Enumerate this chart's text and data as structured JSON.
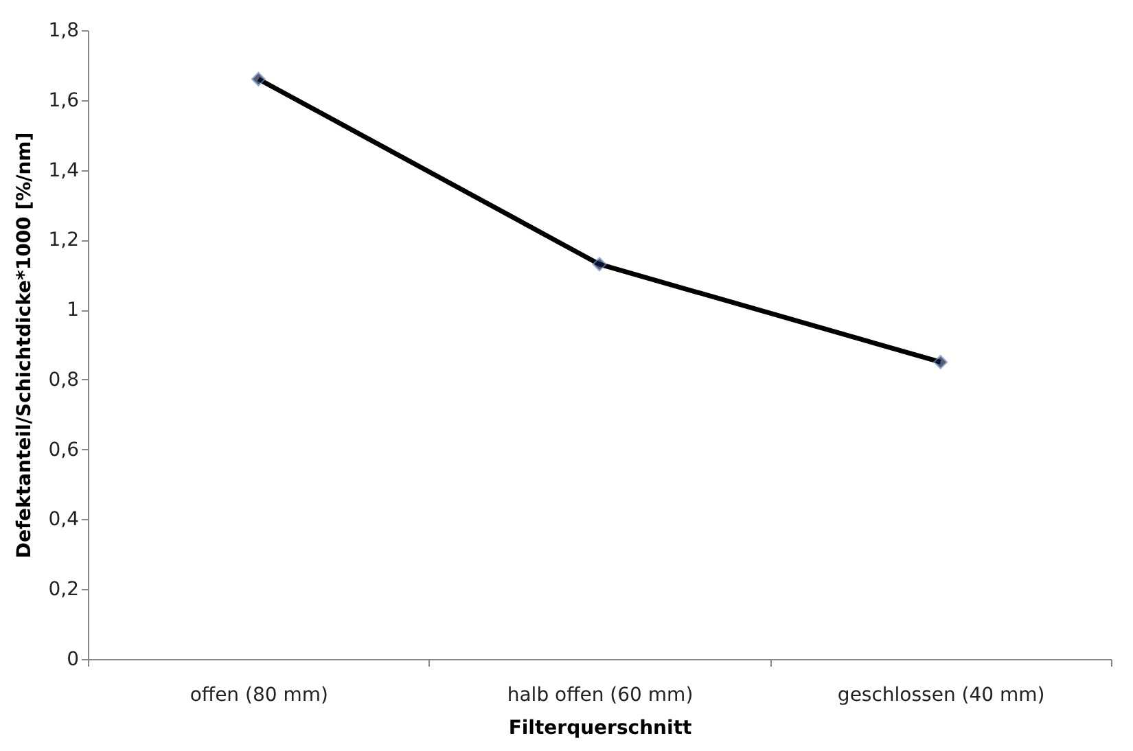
{
  "chart_data": {
    "type": "line",
    "xlabel": "Filterquerschnitt",
    "ylabel": "Defektanteil/Schichtdicke*1000 [%/nm]",
    "categories": [
      "offen (80 mm)",
      "halb offen (60 mm)",
      "geschlossen (40 mm)"
    ],
    "series": [
      {
        "color": "#000000",
        "values": [
          1.66,
          1.13,
          0.85
        ]
      }
    ],
    "ylim": [
      0,
      1.8
    ],
    "yticks": [
      0,
      {
        "value": 0.2,
        "label": "0,2"
      },
      {
        "value": 0.4,
        "label": "0,4"
      },
      {
        "value": 0.6,
        "label": "0,6"
      },
      {
        "value": 0.8,
        "label": "0,8"
      },
      1,
      {
        "value": 1.2,
        "label": "1,2"
      },
      {
        "value": 1.4,
        "label": "1,4"
      },
      {
        "value": 1.6,
        "label": "1,6"
      },
      {
        "value": 1.8,
        "label": "1,8"
      }
    ],
    "grid": false,
    "marker": "diamond",
    "line_style": "solid"
  }
}
